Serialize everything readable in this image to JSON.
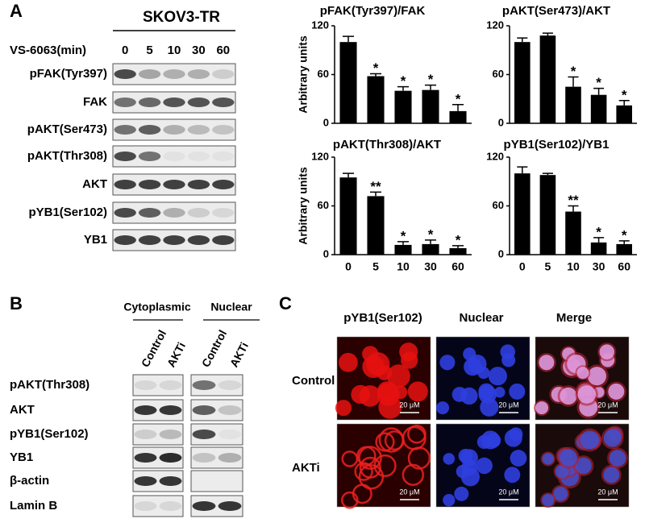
{
  "panel_labels": [
    "A",
    "B",
    "C"
  ],
  "panel_a": {
    "cell_line": "SKOV3-TR",
    "treatment": "VS-6063(min)",
    "timepoints": [
      "0",
      "5",
      "10",
      "30",
      "60"
    ],
    "blot_labels": [
      "pFAK(Tyr397)",
      "FAK",
      "pAKT(Ser473)",
      "pAKT(Thr308)",
      "AKT",
      "pYB1(Ser102)",
      "YB1"
    ]
  },
  "chart_data": [
    {
      "type": "bar",
      "title": "pFAK(Tyr397)/FAK",
      "y_label": "Arbitrary units",
      "categories": [
        null,
        null,
        null,
        null,
        null
      ],
      "values": [
        100,
        58,
        40,
        41,
        15
      ],
      "errors": [
        7,
        3,
        5,
        6,
        8
      ],
      "annotations": [
        null,
        "*",
        "*",
        "*",
        "*"
      ],
      "color": "#000000",
      "ylim": [
        0,
        120
      ],
      "yticks": [
        0,
        60,
        120
      ]
    },
    {
      "type": "bar",
      "title": "pAKT(Ser473)/AKT",
      "categories": [
        null,
        null,
        null,
        null,
        null
      ],
      "values": [
        100,
        108,
        45,
        35,
        22
      ],
      "errors": [
        5,
        3,
        12,
        8,
        6
      ],
      "annotations": [
        null,
        null,
        "*",
        "*",
        "*"
      ],
      "color": "#000000",
      "ylim": [
        0,
        120
      ],
      "yticks": [
        0,
        60,
        120
      ]
    },
    {
      "type": "bar",
      "title": "pAKT(Thr308)/AKT",
      "y_label": "Arbitrary units",
      "categories": [
        "0",
        "5",
        "10",
        "30",
        "60"
      ],
      "values": [
        95,
        72,
        12,
        13,
        8
      ],
      "errors": [
        5,
        5,
        4,
        5,
        3
      ],
      "annotations": [
        null,
        "**",
        "*",
        "*",
        "*"
      ],
      "color": "#000000",
      "ylim": [
        0,
        120
      ],
      "yticks": [
        0,
        60,
        120
      ]
    },
    {
      "type": "bar",
      "title": "pYB1(Ser102)/YB1",
      "categories": [
        "0",
        "5",
        "10",
        "30",
        "60"
      ],
      "values": [
        100,
        98,
        53,
        15,
        13
      ],
      "errors": [
        8,
        2,
        7,
        6,
        4
      ],
      "annotations": [
        null,
        null,
        "**",
        "*",
        "*"
      ],
      "color": "#000000",
      "ylim": [
        0,
        120
      ],
      "yticks": [
        0,
        60,
        120
      ]
    }
  ],
  "panel_b": {
    "fractions": [
      "Cytoplasmic",
      "Nuclear"
    ],
    "conditions": [
      "Control",
      "AKTi"
    ],
    "blot_labels": [
      "pAKT(Thr308)",
      "AKT",
      "pYB1(Ser102)",
      "YB1",
      "β-actin",
      "Lamin B"
    ]
  },
  "panel_c": {
    "columns": [
      "pYB1(Ser102)",
      "Nuclear",
      "Merge"
    ],
    "rows": [
      "Control",
      "AKTi"
    ],
    "scale_bar": "20 μM"
  }
}
